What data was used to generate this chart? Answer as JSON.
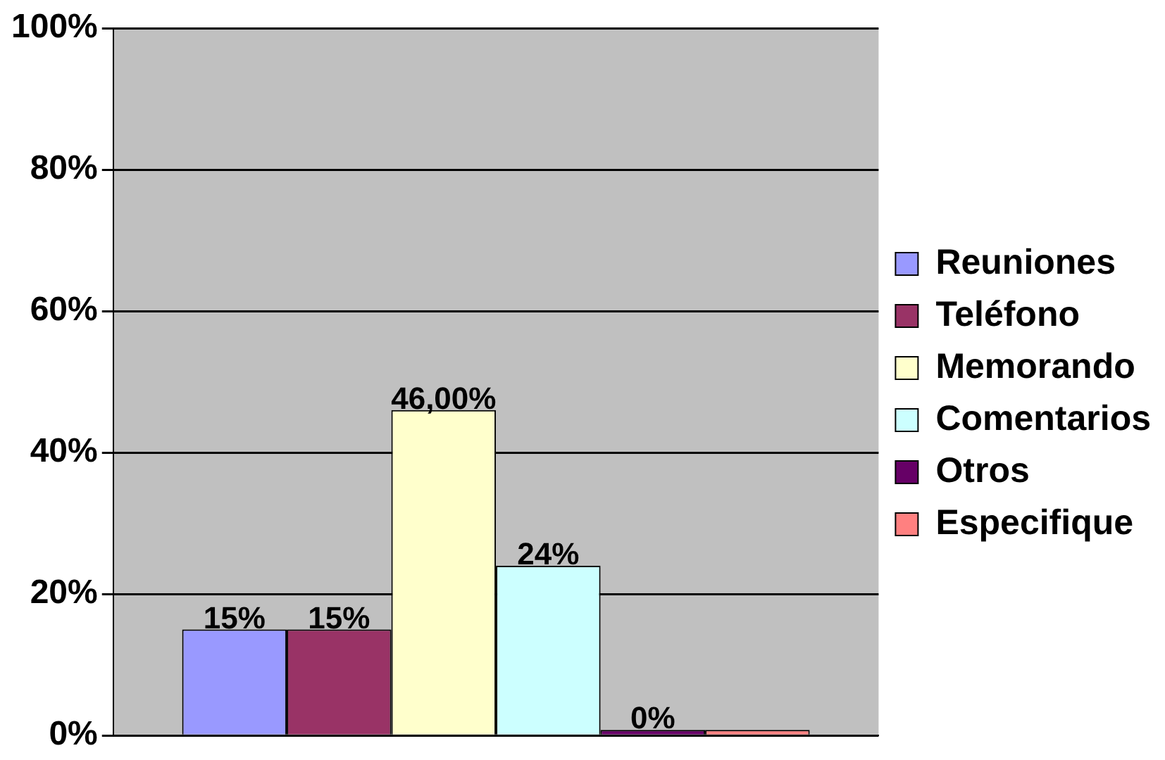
{
  "chart_data": {
    "type": "bar",
    "categories": [
      null
    ],
    "series": [
      {
        "name": "Reuniones",
        "color": "#9999ff",
        "values": [
          15
        ],
        "value_labels": [
          "15%"
        ]
      },
      {
        "name": "Teléfono",
        "color": "#993366",
        "values": [
          15
        ],
        "value_labels": [
          "15%"
        ]
      },
      {
        "name": "Memorando",
        "color": "#ffffcc",
        "values": [
          46
        ],
        "value_labels": [
          "46,00%"
        ]
      },
      {
        "name": "Comentarios",
        "color": "#ccffff",
        "values": [
          24
        ],
        "value_labels": [
          "24%"
        ]
      },
      {
        "name": "Otros",
        "color": "#660066",
        "values": [
          0
        ],
        "value_labels": [
          "0%"
        ]
      },
      {
        "name": "Especifique",
        "color": "#ff8080",
        "values": [
          0
        ],
        "value_labels": [
          null
        ]
      }
    ],
    "ylim": [
      0,
      100
    ],
    "yticks": [
      {
        "value": 0,
        "label": "0%"
      },
      {
        "value": 20,
        "label": "20%"
      },
      {
        "value": 40,
        "label": "40%"
      },
      {
        "value": 60,
        "label": "60%"
      },
      {
        "value": 80,
        "label": "80%"
      },
      {
        "value": 100,
        "label": "100%"
      }
    ],
    "grid": "y",
    "legend": "right"
  }
}
